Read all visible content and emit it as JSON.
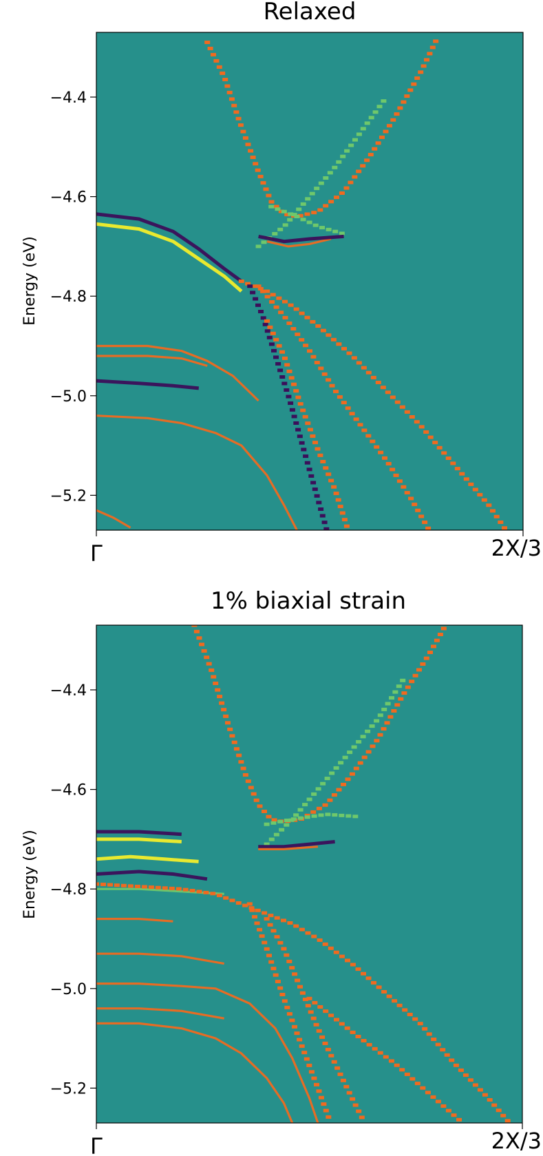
{
  "colors": {
    "background": "#26908b",
    "dark": "#3b0f5a",
    "yellow": "#f3ee2a",
    "orange": "#f06a1f",
    "green": "#6fc86b"
  },
  "chart_data": [
    {
      "type": "heatmap",
      "title": "Relaxed",
      "ylabel": "Energy (eV)",
      "xlabel": "",
      "xticks": [
        "Γ",
        "2X/3"
      ],
      "yticks": [
        "−4.4",
        "−4.6",
        "−4.8",
        "−5.0",
        "−5.2"
      ],
      "ytick_values": [
        -4.4,
        -4.6,
        -4.8,
        -5.0,
        -5.2
      ],
      "xlim": [
        0,
        1
      ],
      "ylim": [
        -5.27,
        -4.27
      ],
      "colormap": "viridis / inferno diverging",
      "bands": [
        {
          "kind": "dotted",
          "color": "orange",
          "points": [
            [
              0.26,
              -4.29
            ],
            [
              0.3,
              -4.36
            ],
            [
              0.34,
              -4.46
            ],
            [
              0.38,
              -4.55
            ],
            [
              0.41,
              -4.61
            ],
            [
              0.44,
              -4.635
            ],
            [
              0.47,
              -4.64
            ],
            [
              0.52,
              -4.63
            ],
            [
              0.58,
              -4.59
            ],
            [
              0.64,
              -4.52
            ],
            [
              0.7,
              -4.44
            ],
            [
              0.76,
              -4.35
            ],
            [
              0.8,
              -4.28
            ]
          ]
        },
        {
          "kind": "dotted",
          "color": "green",
          "points": [
            [
              0.41,
              -4.62
            ],
            [
              0.47,
              -4.64
            ],
            [
              0.52,
              -4.66
            ],
            [
              0.58,
              -4.675
            ]
          ]
        },
        {
          "kind": "dotted",
          "color": "green",
          "points": [
            [
              0.38,
              -4.7
            ],
            [
              0.44,
              -4.66
            ],
            [
              0.5,
              -4.6
            ],
            [
              0.56,
              -4.54
            ],
            [
              0.62,
              -4.47
            ],
            [
              0.68,
              -4.4
            ]
          ]
        },
        {
          "kind": "solid",
          "color": "dark",
          "points": [
            [
              0.0,
              -4.635
            ],
            [
              0.1,
              -4.645
            ],
            [
              0.18,
              -4.67
            ],
            [
              0.24,
              -4.705
            ],
            [
              0.3,
              -4.745
            ],
            [
              0.34,
              -4.77
            ]
          ]
        },
        {
          "kind": "solid",
          "color": "yellow",
          "points": [
            [
              0.0,
              -4.655
            ],
            [
              0.1,
              -4.665
            ],
            [
              0.18,
              -4.69
            ],
            [
              0.24,
              -4.725
            ],
            [
              0.3,
              -4.76
            ],
            [
              0.34,
              -4.79
            ]
          ]
        },
        {
          "kind": "solid",
          "color": "orange",
          "points": [
            [
              0.4,
              -4.69
            ],
            [
              0.45,
              -4.7
            ],
            [
              0.5,
              -4.695
            ],
            [
              0.55,
              -4.685
            ]
          ]
        },
        {
          "kind": "solid",
          "color": "dark",
          "points": [
            [
              0.38,
              -4.68
            ],
            [
              0.44,
              -4.69
            ],
            [
              0.5,
              -4.685
            ],
            [
              0.58,
              -4.68
            ]
          ]
        },
        {
          "kind": "dotted",
          "color": "orange",
          "points": [
            [
              0.34,
              -4.77
            ],
            [
              0.4,
              -4.79
            ],
            [
              0.46,
              -4.82
            ],
            [
              0.52,
              -4.86
            ],
            [
              0.6,
              -4.92
            ],
            [
              0.68,
              -4.99
            ],
            [
              0.76,
              -5.06
            ],
            [
              0.84,
              -5.14
            ],
            [
              0.92,
              -5.22
            ],
            [
              0.96,
              -5.27
            ]
          ]
        },
        {
          "kind": "dotted",
          "color": "orange",
          "points": [
            [
              0.38,
              -4.78
            ],
            [
              0.44,
              -4.84
            ],
            [
              0.5,
              -4.91
            ],
            [
              0.56,
              -4.99
            ],
            [
              0.62,
              -5.06
            ],
            [
              0.68,
              -5.13
            ],
            [
              0.74,
              -5.21
            ],
            [
              0.78,
              -5.27
            ]
          ]
        },
        {
          "kind": "dotted",
          "color": "dark",
          "points": [
            [
              0.36,
              -4.78
            ],
            [
              0.39,
              -4.84
            ],
            [
              0.42,
              -4.92
            ],
            [
              0.45,
              -5.0
            ],
            [
              0.48,
              -5.09
            ],
            [
              0.51,
              -5.18
            ],
            [
              0.54,
              -5.27
            ]
          ]
        },
        {
          "kind": "dotted",
          "color": "orange",
          "points": [
            [
              0.4,
              -4.85
            ],
            [
              0.44,
              -4.92
            ],
            [
              0.48,
              -5.02
            ],
            [
              0.52,
              -5.11
            ],
            [
              0.56,
              -5.19
            ],
            [
              0.59,
              -5.27
            ]
          ]
        },
        {
          "kind": "solid",
          "color": "orange",
          "points": [
            [
              0.0,
              -4.9
            ],
            [
              0.12,
              -4.9
            ],
            [
              0.2,
              -4.91
            ],
            [
              0.26,
              -4.93
            ],
            [
              0.32,
              -4.96
            ],
            [
              0.38,
              -5.01
            ]
          ]
        },
        {
          "kind": "solid",
          "color": "orange",
          "points": [
            [
              0.0,
              -4.92
            ],
            [
              0.12,
              -4.92
            ],
            [
              0.2,
              -4.925
            ],
            [
              0.26,
              -4.94
            ]
          ]
        },
        {
          "kind": "solid",
          "color": "dark",
          "points": [
            [
              0.0,
              -4.97
            ],
            [
              0.1,
              -4.975
            ],
            [
              0.18,
              -4.98
            ],
            [
              0.24,
              -4.985
            ]
          ]
        },
        {
          "kind": "solid",
          "color": "orange",
          "points": [
            [
              0.0,
              -5.04
            ],
            [
              0.12,
              -5.045
            ],
            [
              0.2,
              -5.055
            ],
            [
              0.28,
              -5.075
            ],
            [
              0.34,
              -5.1
            ],
            [
              0.4,
              -5.16
            ],
            [
              0.44,
              -5.22
            ],
            [
              0.47,
              -5.27
            ]
          ]
        },
        {
          "kind": "solid",
          "color": "orange",
          "points": [
            [
              0.0,
              -5.23
            ],
            [
              0.04,
              -5.245
            ],
            [
              0.08,
              -5.265
            ]
          ]
        }
      ]
    },
    {
      "type": "heatmap",
      "title": "1% biaxial strain",
      "ylabel": "Energy (eV)",
      "xlabel": "",
      "xticks": [
        "Γ",
        "2X/3"
      ],
      "yticks": [
        "−4.4",
        "−4.6",
        "−4.8",
        "−5.0",
        "−5.2"
      ],
      "ytick_values": [
        -4.4,
        -4.6,
        -4.8,
        -5.0,
        -5.2
      ],
      "xlim": [
        0,
        1
      ],
      "ylim": [
        -5.27,
        -4.27
      ],
      "colormap": "viridis / inferno diverging",
      "bands": [
        {
          "kind": "dotted",
          "color": "orange",
          "points": [
            [
              0.23,
              -4.27
            ],
            [
              0.27,
              -4.36
            ],
            [
              0.31,
              -4.47
            ],
            [
              0.35,
              -4.57
            ],
            [
              0.38,
              -4.63
            ],
            [
              0.41,
              -4.66
            ],
            [
              0.44,
              -4.665
            ],
            [
              0.48,
              -4.66
            ],
            [
              0.54,
              -4.63
            ],
            [
              0.6,
              -4.57
            ],
            [
              0.66,
              -4.5
            ],
            [
              0.72,
              -4.41
            ],
            [
              0.78,
              -4.33
            ],
            [
              0.82,
              -4.27
            ]
          ]
        },
        {
          "kind": "dotted",
          "color": "green",
          "points": [
            [
              0.4,
              -4.67
            ],
            [
              0.46,
              -4.66
            ],
            [
              0.54,
              -4.65
            ],
            [
              0.62,
              -4.655
            ]
          ]
        },
        {
          "kind": "dotted",
          "color": "green",
          "points": [
            [
              0.4,
              -4.71
            ],
            [
              0.46,
              -4.66
            ],
            [
              0.52,
              -4.6
            ],
            [
              0.58,
              -4.54
            ],
            [
              0.66,
              -4.46
            ],
            [
              0.72,
              -4.38
            ]
          ]
        },
        {
          "kind": "solid",
          "color": "dark",
          "points": [
            [
              0.0,
              -4.685
            ],
            [
              0.1,
              -4.685
            ],
            [
              0.2,
              -4.69
            ]
          ]
        },
        {
          "kind": "solid",
          "color": "yellow",
          "points": [
            [
              0.0,
              -4.7
            ],
            [
              0.1,
              -4.7
            ],
            [
              0.2,
              -4.705
            ]
          ]
        },
        {
          "kind": "solid",
          "color": "dark",
          "points": [
            [
              0.38,
              -4.715
            ],
            [
              0.44,
              -4.715
            ],
            [
              0.5,
              -4.71
            ],
            [
              0.56,
              -4.705
            ]
          ]
        },
        {
          "kind": "solid",
          "color": "orange",
          "points": [
            [
              0.38,
              -4.72
            ],
            [
              0.44,
              -4.72
            ],
            [
              0.52,
              -4.715
            ]
          ]
        },
        {
          "kind": "solid",
          "color": "yellow",
          "points": [
            [
              0.0,
              -4.74
            ],
            [
              0.08,
              -4.735
            ],
            [
              0.16,
              -4.74
            ],
            [
              0.24,
              -4.745
            ]
          ]
        },
        {
          "kind": "solid",
          "color": "dark",
          "points": [
            [
              0.0,
              -4.77
            ],
            [
              0.1,
              -4.765
            ],
            [
              0.18,
              -4.77
            ],
            [
              0.26,
              -4.78
            ]
          ]
        },
        {
          "kind": "solid",
          "color": "green",
          "points": [
            [
              0.0,
              -4.8
            ],
            [
              0.1,
              -4.8
            ],
            [
              0.2,
              -4.805
            ],
            [
              0.3,
              -4.81
            ]
          ]
        },
        {
          "kind": "dotted",
          "color": "orange",
          "points": [
            [
              0.0,
              -4.79
            ],
            [
              0.1,
              -4.795
            ],
            [
              0.2,
              -4.8
            ],
            [
              0.28,
              -4.81
            ],
            [
              0.34,
              -4.83
            ],
            [
              0.4,
              -4.85
            ],
            [
              0.46,
              -4.87
            ],
            [
              0.52,
              -4.9
            ],
            [
              0.6,
              -4.95
            ],
            [
              0.68,
              -5.01
            ],
            [
              0.76,
              -5.07
            ],
            [
              0.84,
              -5.15
            ],
            [
              0.92,
              -5.22
            ],
            [
              0.97,
              -5.27
            ]
          ]
        },
        {
          "kind": "dotted",
          "color": "orange",
          "points": [
            [
              0.4,
              -4.86
            ],
            [
              0.44,
              -4.92
            ],
            [
              0.48,
              -5.0
            ],
            [
              0.52,
              -5.08
            ],
            [
              0.56,
              -5.15
            ],
            [
              0.6,
              -5.22
            ],
            [
              0.63,
              -5.27
            ]
          ]
        },
        {
          "kind": "dotted",
          "color": "orange",
          "points": [
            [
              0.36,
              -4.83
            ],
            [
              0.4,
              -4.92
            ],
            [
              0.44,
              -5.02
            ],
            [
              0.48,
              -5.11
            ],
            [
              0.52,
              -5.2
            ],
            [
              0.55,
              -5.27
            ]
          ]
        },
        {
          "kind": "dotted",
          "color": "orange",
          "points": [
            [
              0.5,
              -5.02
            ],
            [
              0.56,
              -5.06
            ],
            [
              0.62,
              -5.1
            ],
            [
              0.7,
              -5.15
            ],
            [
              0.78,
              -5.21
            ],
            [
              0.86,
              -5.27
            ]
          ]
        },
        {
          "kind": "solid",
          "color": "orange",
          "points": [
            [
              0.0,
              -4.86
            ],
            [
              0.1,
              -4.86
            ],
            [
              0.18,
              -4.865
            ]
          ]
        },
        {
          "kind": "solid",
          "color": "orange",
          "points": [
            [
              0.0,
              -4.93
            ],
            [
              0.1,
              -4.93
            ],
            [
              0.2,
              -4.935
            ],
            [
              0.3,
              -4.95
            ]
          ]
        },
        {
          "kind": "solid",
          "color": "orange",
          "points": [
            [
              0.0,
              -4.99
            ],
            [
              0.1,
              -4.99
            ],
            [
              0.2,
              -4.995
            ],
            [
              0.28,
              -5.0
            ],
            [
              0.36,
              -5.03
            ],
            [
              0.42,
              -5.08
            ],
            [
              0.46,
              -5.14
            ],
            [
              0.5,
              -5.22
            ],
            [
              0.52,
              -5.27
            ]
          ]
        },
        {
          "kind": "solid",
          "color": "orange",
          "points": [
            [
              0.0,
              -5.04
            ],
            [
              0.1,
              -5.04
            ],
            [
              0.2,
              -5.045
            ],
            [
              0.3,
              -5.06
            ]
          ]
        },
        {
          "kind": "solid",
          "color": "orange",
          "points": [
            [
              0.0,
              -5.07
            ],
            [
              0.1,
              -5.07
            ],
            [
              0.2,
              -5.08
            ],
            [
              0.28,
              -5.1
            ],
            [
              0.34,
              -5.13
            ],
            [
              0.4,
              -5.18
            ],
            [
              0.44,
              -5.23
            ],
            [
              0.46,
              -5.27
            ]
          ]
        }
      ]
    }
  ]
}
